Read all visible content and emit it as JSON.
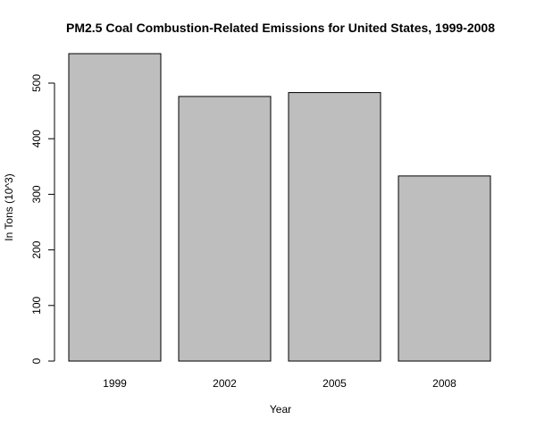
{
  "chart_data": {
    "type": "bar",
    "title": "PM2.5 Coal Combustion-Related Emissions for United States, 1999-2008",
    "xlabel": "Year",
    "ylabel": "In Tons (10^3)",
    "categories": [
      "1999",
      "2002",
      "2005",
      "2008"
    ],
    "values": [
      553,
      476,
      483,
      333
    ],
    "ylim": [
      0,
      553
    ],
    "yticks": [
      0,
      100,
      200,
      300,
      400,
      500
    ],
    "grid": false,
    "legend": "none",
    "bar_color": "#bebebe",
    "bar_border_color": "#000000"
  }
}
